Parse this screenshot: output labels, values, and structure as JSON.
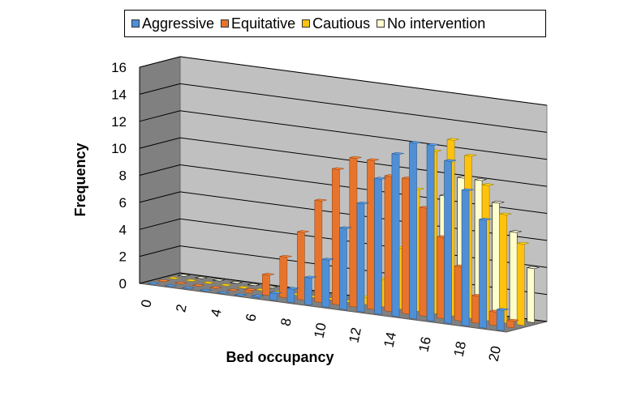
{
  "chart_data": {
    "type": "bar",
    "title": "",
    "xlabel": "Bed occupancy",
    "ylabel": "Frequency",
    "ylim": [
      0,
      16
    ],
    "yticks": [
      0,
      2,
      4,
      6,
      8,
      10,
      12,
      14,
      16
    ],
    "xticks": [
      "0",
      "2",
      "4",
      "6",
      "8",
      "10",
      "12",
      "14",
      "16",
      "18",
      "20"
    ],
    "grid": true,
    "legend_position": "top",
    "categories": [
      "0",
      "1",
      "2",
      "3",
      "4",
      "5",
      "6",
      "7",
      "8",
      "9",
      "10",
      "11",
      "12",
      "13",
      "14",
      "15",
      "16",
      "17",
      "18",
      "19",
      "20"
    ],
    "series": [
      {
        "name": "Aggressive",
        "color": "#4f8fd6",
        "values": [
          0,
          0,
          0,
          0,
          0,
          0,
          0.1,
          0.5,
          1,
          2,
          3.5,
          6,
          8,
          10,
          12,
          13,
          13,
          12,
          10,
          8,
          1.5
        ]
      },
      {
        "name": "Equitative",
        "color": "#e8742c",
        "values": [
          0,
          0,
          0,
          0,
          0,
          0.2,
          1.5,
          3,
          5,
          7.5,
          10,
          11,
          11,
          10,
          10,
          8,
          6,
          4,
          2,
          1,
          0.5
        ]
      },
      {
        "name": "Cautious",
        "color": "#ffc20e",
        "values": [
          0,
          0,
          0,
          0,
          0,
          0,
          0,
          0,
          0,
          0,
          0,
          0.5,
          2,
          4.5,
          9,
          12,
          13,
          12,
          10,
          8,
          6
        ]
      },
      {
        "name": "No intervention",
        "color": "#ffffcc",
        "values": [
          0,
          0,
          0,
          0,
          0,
          0,
          0,
          0,
          0,
          0,
          0,
          0,
          0,
          2,
          5,
          8.5,
          10,
          10,
          8.5,
          6.5,
          4
        ]
      }
    ]
  }
}
